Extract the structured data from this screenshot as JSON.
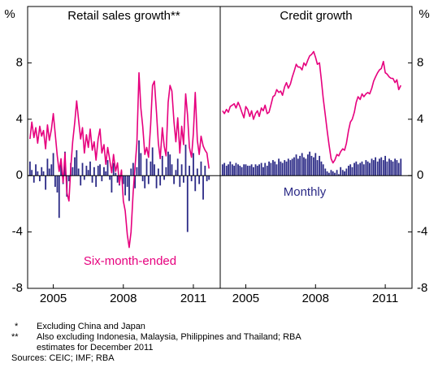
{
  "chart_data": [
    {
      "type": "bar-line",
      "title": "Retail sales growth**",
      "y_unit": "%",
      "xlim": [
        2003.9,
        2012.15
      ],
      "xticks": [
        2005,
        2008,
        2011
      ],
      "ylim": [
        -8,
        12
      ],
      "yticks": [
        -8,
        -4,
        0,
        4,
        8
      ],
      "x": [
        2004,
        2004.08,
        2004.17,
        2004.25,
        2004.33,
        2004.42,
        2004.5,
        2004.58,
        2004.67,
        2004.75,
        2004.83,
        2004.92,
        2005,
        2005.08,
        2005.17,
        2005.25,
        2005.33,
        2005.42,
        2005.5,
        2005.58,
        2005.67,
        2005.75,
        2005.83,
        2005.92,
        2006,
        2006.08,
        2006.17,
        2006.25,
        2006.33,
        2006.42,
        2006.5,
        2006.58,
        2006.67,
        2006.75,
        2006.83,
        2006.92,
        2007,
        2007.08,
        2007.17,
        2007.25,
        2007.33,
        2007.42,
        2007.5,
        2007.58,
        2007.67,
        2007.75,
        2007.83,
        2007.92,
        2008,
        2008.08,
        2008.17,
        2008.25,
        2008.33,
        2008.42,
        2008.5,
        2008.58,
        2008.67,
        2008.75,
        2008.83,
        2008.92,
        2009,
        2009.08,
        2009.17,
        2009.25,
        2009.33,
        2009.42,
        2009.5,
        2009.58,
        2009.67,
        2009.75,
        2009.83,
        2009.92,
        2010,
        2010.08,
        2010.17,
        2010.25,
        2010.33,
        2010.42,
        2010.5,
        2010.58,
        2010.67,
        2010.75,
        2010.83,
        2010.92,
        2011,
        2011.08,
        2011.17,
        2011.25,
        2011.33,
        2011.42,
        2011.5,
        2011.58,
        2011.67
      ],
      "series": [
        {
          "name": "Six-month-ended",
          "kind": "line",
          "color": "#e6007e",
          "values": [
            2.6,
            3.8,
            2.7,
            3.4,
            2.3,
            3.5,
            2.8,
            3.2,
            1.9,
            3.6,
            2.5,
            3.3,
            4.4,
            3.0,
            1.4,
            0.3,
            1.2,
            -0.5,
            1.6,
            -1.2,
            -1.8,
            0.6,
            2.4,
            3.8,
            5.3,
            4.0,
            2.6,
            3.4,
            1.6,
            2.9,
            2.0,
            3.3,
            1.8,
            2.4,
            1.1,
            2.6,
            3.3,
            1.6,
            2.2,
            0.8,
            2.0,
            1.1,
            0.2,
            1.5,
            0.3,
            0.9,
            -0.6,
            0.4,
            -1.8,
            -2.5,
            -4.2,
            -5.1,
            -4.0,
            -1.2,
            0.6,
            2.3,
            7.3,
            4.8,
            3.5,
            1.5,
            2.0,
            1.3,
            3.6,
            6.4,
            6.7,
            4.5,
            2.3,
            1.2,
            3.4,
            2.1,
            1.4,
            5.2,
            6.4,
            6.0,
            3.8,
            2.4,
            4.1,
            1.6,
            3.5,
            2.2,
            5.8,
            4.3,
            2.0,
            1.3,
            3.0,
            5.9,
            2.5,
            1.5,
            2.8,
            2.1,
            1.8,
            1.6,
            0.5
          ]
        },
        {
          "kind": "bar",
          "color": "#2b2a86",
          "values": [
            1.0,
            0.4,
            -0.5,
            0.8,
            0.3,
            -0.4,
            0.6,
            0.3,
            -1.0,
            1.2,
            0.5,
            0.8,
            1.6,
            -0.8,
            -1.2,
            -3.0,
            0.8,
            -0.6,
            1.7,
            -1.5,
            -0.4,
            0.9,
            0.6,
            1.3,
            1.8,
            0.5,
            -0.7,
            0.9,
            -0.3,
            0.7,
            0.4,
            1.0,
            -0.5,
            0.6,
            -0.8,
            0.7,
            0.8,
            -0.4,
            0.6,
            0.3,
            1.1,
            -0.3,
            -1.2,
            0.9,
            0.2,
            -0.5,
            -0.7,
            0.3,
            -0.6,
            -1.4,
            -0.8,
            -1.8,
            0.5,
            0.9,
            -0.9,
            0.6,
            2.5,
            1.6,
            -0.4,
            -0.9,
            1.2,
            -0.6,
            1.0,
            2.0,
            0.8,
            -0.9,
            0.5,
            -0.7,
            1.4,
            -0.3,
            0.6,
            1.7,
            1.5,
            0.8,
            -0.6,
            0.4,
            1.2,
            -0.8,
            0.8,
            -0.5,
            2.2,
            -4.0,
            0.7,
            -0.4,
            1.6,
            -1.1,
            0.5,
            -0.6,
            1.0,
            -1.7,
            0.7,
            -0.4,
            -0.3
          ]
        }
      ]
    },
    {
      "type": "bar-line",
      "title": "Credit growth",
      "y_unit": "%",
      "xlim": [
        2003.9,
        2012.15
      ],
      "xticks": [
        2005,
        2008,
        2011
      ],
      "ylim": [
        -8,
        12
      ],
      "yticks": [
        -8,
        -4,
        0,
        4,
        8
      ],
      "x": [
        2004,
        2004.08,
        2004.17,
        2004.25,
        2004.33,
        2004.42,
        2004.5,
        2004.58,
        2004.67,
        2004.75,
        2004.83,
        2004.92,
        2005,
        2005.08,
        2005.17,
        2005.25,
        2005.33,
        2005.42,
        2005.5,
        2005.58,
        2005.67,
        2005.75,
        2005.83,
        2005.92,
        2006,
        2006.08,
        2006.17,
        2006.25,
        2006.33,
        2006.42,
        2006.5,
        2006.58,
        2006.67,
        2006.75,
        2006.83,
        2006.92,
        2007,
        2007.08,
        2007.17,
        2007.25,
        2007.33,
        2007.42,
        2007.5,
        2007.58,
        2007.67,
        2007.75,
        2007.83,
        2007.92,
        2008,
        2008.08,
        2008.17,
        2008.25,
        2008.33,
        2008.42,
        2008.5,
        2008.58,
        2008.67,
        2008.75,
        2008.83,
        2008.92,
        2009,
        2009.08,
        2009.17,
        2009.25,
        2009.33,
        2009.42,
        2009.5,
        2009.58,
        2009.67,
        2009.75,
        2009.83,
        2009.92,
        2010,
        2010.08,
        2010.17,
        2010.25,
        2010.33,
        2010.42,
        2010.5,
        2010.58,
        2010.67,
        2010.75,
        2010.83,
        2010.92,
        2011,
        2011.08,
        2011.17,
        2011.25,
        2011.33,
        2011.42,
        2011.5,
        2011.58,
        2011.67
      ],
      "series": [
        {
          "kind": "line",
          "color": "#e6007e",
          "values": [
            4.6,
            4.4,
            4.7,
            4.5,
            4.9,
            5.0,
            5.1,
            4.8,
            5.2,
            4.9,
            4.5,
            4.1,
            4.9,
            4.7,
            4.2,
            4.6,
            4.0,
            4.4,
            4.6,
            4.2,
            4.8,
            4.6,
            5.0,
            4.4,
            4.5,
            5.0,
            5.6,
            5.7,
            6.1,
            5.9,
            6.0,
            5.7,
            6.3,
            6.6,
            6.2,
            6.5,
            7.0,
            7.4,
            7.9,
            7.7,
            7.7,
            7.5,
            8.0,
            7.8,
            8.2,
            8.5,
            8.6,
            8.8,
            8.4,
            7.9,
            8.0,
            6.8,
            5.5,
            4.3,
            3.2,
            2.2,
            1.2,
            0.9,
            1.1,
            1.5,
            1.4,
            1.7,
            1.9,
            1.8,
            2.3,
            3.2,
            3.8,
            4.0,
            4.5,
            5.2,
            5.6,
            5.4,
            5.8,
            5.6,
            5.8,
            5.9,
            5.8,
            6.2,
            6.7,
            7.0,
            7.3,
            7.5,
            7.6,
            8.1,
            7.3,
            7.2,
            7.0,
            6.9,
            6.9,
            6.6,
            6.8,
            6.1,
            6.4
          ]
        },
        {
          "name": "Monthly",
          "kind": "bar",
          "color": "#2b2a86",
          "values": [
            0.8,
            0.9,
            0.7,
            0.8,
            1.0,
            0.8,
            0.7,
            0.9,
            0.8,
            0.7,
            0.6,
            0.8,
            0.8,
            0.7,
            0.7,
            0.8,
            0.6,
            0.8,
            0.7,
            0.8,
            0.9,
            0.6,
            0.9,
            0.7,
            1.0,
            0.9,
            1.1,
            1.0,
            0.8,
            1.2,
            1.0,
            0.9,
            1.1,
            1.0,
            1.2,
            1.1,
            1.2,
            1.3,
            1.5,
            1.2,
            1.4,
            1.6,
            1.3,
            1.2,
            1.5,
            1.7,
            1.4,
            1.3,
            1.6,
            1.1,
            1.4,
            1.0,
            0.8,
            0.5,
            0.3,
            0.2,
            0.4,
            0.3,
            0.2,
            0.4,
            0.1,
            0.6,
            0.4,
            0.3,
            0.5,
            0.7,
            0.8,
            0.6,
            0.9,
            1.0,
            0.8,
            0.9,
            1.0,
            0.8,
            1.1,
            1.0,
            0.9,
            1.2,
            1.1,
            1.3,
            1.0,
            1.2,
            1.3,
            1.1,
            1.4,
            1.0,
            1.2,
            1.1,
            1.0,
            1.2,
            1.1,
            0.9,
            1.2
          ]
        }
      ]
    }
  ],
  "notes": [
    {
      "mark": "*",
      "text": "Excluding China and Japan"
    },
    {
      "mark": "**",
      "text": "Also excluding Indonesia, Malaysia, Philippines and Thailand; RBA",
      "cont": "estimates for December 2011"
    }
  ],
  "sources": "Sources: CEIC; IMF; RBA"
}
